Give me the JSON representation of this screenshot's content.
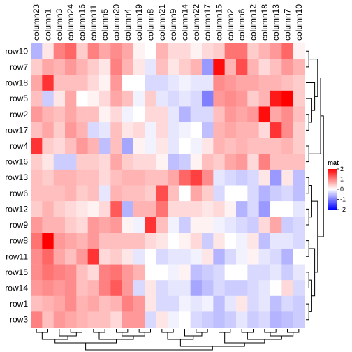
{
  "chart_data": {
    "type": "heatmap",
    "columns": [
      "column23",
      "column1",
      "column3",
      "column24",
      "column16",
      "column11",
      "column5",
      "column20",
      "column4",
      "column19",
      "column8",
      "column21",
      "column9",
      "column14",
      "column22",
      "column17",
      "column15",
      "column2",
      "column6",
      "column12",
      "column18",
      "column13",
      "column7",
      "column10"
    ],
    "rows": [
      "row10",
      "row7",
      "row18",
      "row5",
      "row2",
      "row17",
      "row4",
      "row16",
      "row13",
      "row6",
      "row12",
      "row9",
      "row8",
      "row11",
      "row15",
      "row14",
      "row1",
      "row3"
    ],
    "values": [
      [
        -0.6,
        0.2,
        1.0,
        1.2,
        0.4,
        1.0,
        0.7,
        0.9,
        0.7,
        0.1,
        0.0,
        0.6,
        0.3,
        0.3,
        0.1,
        0.3,
        0.4,
        1.1,
        1.1,
        0.4,
        0.6,
        0.8,
        1.2,
        0.1
      ],
      [
        0.4,
        0.7,
        0.6,
        0.8,
        0.6,
        0.4,
        0.2,
        1.0,
        0.6,
        0.2,
        -0.2,
        0.5,
        0.2,
        0.4,
        0.6,
        -0.8,
        1.9,
        0.6,
        1.4,
        0.6,
        0.3,
        0.5,
        0.8,
        0.6
      ],
      [
        0.7,
        1.6,
        0.5,
        0.5,
        0.5,
        0.3,
        0.1,
        0.8,
        0.0,
        0.0,
        -0.3,
        -0.3,
        -0.2,
        -0.1,
        -0.2,
        -0.2,
        0.9,
        0.8,
        0.7,
        0.7,
        0.6,
        0.6,
        0.5,
        0.4
      ],
      [
        0.5,
        -0.4,
        0.2,
        0.7,
        0.0,
        0.1,
        0.3,
        0.7,
        0.5,
        -0.1,
        0.4,
        -0.2,
        -0.3,
        -0.2,
        -0.3,
        -1.0,
        0.8,
        0.9,
        0.8,
        0.4,
        0.6,
        1.8,
        2.0,
        0.4
      ],
      [
        0.8,
        0.6,
        0.5,
        0.7,
        0.5,
        0.5,
        0.1,
        0.3,
        -0.1,
        0.0,
        0.3,
        0.3,
        -0.2,
        -0.6,
        -0.3,
        -0.3,
        0.5,
        0.8,
        0.7,
        0.8,
        1.9,
        0.7,
        0.9,
        0.5
      ],
      [
        0.5,
        0.7,
        0.4,
        0.8,
        0.6,
        -0.3,
        -0.2,
        0.5,
        0.2,
        0.3,
        -0.1,
        0.3,
        -0.2,
        -0.1,
        0.0,
        -0.5,
        0.6,
        0.7,
        0.6,
        0.6,
        0.3,
        1.6,
        0.9,
        0.4
      ],
      [
        1.6,
        0.4,
        0.3,
        0.5,
        0.8,
        0.6,
        -0.5,
        0.5,
        -0.7,
        0.1,
        -0.1,
        0.2,
        -0.2,
        0.0,
        -0.1,
        0.2,
        0.6,
        0.5,
        0.6,
        0.5,
        0.5,
        0.5,
        0.6,
        0.4
      ],
      [
        0.4,
        0.2,
        -0.4,
        -0.4,
        0.4,
        0.4,
        0.3,
        0.7,
        0.4,
        0.3,
        0.3,
        0.1,
        -0.5,
        -0.4,
        0.1,
        0.5,
        0.4,
        0.7,
        0.8,
        0.3,
        1.0,
        0.5,
        0.5,
        0.5
      ],
      [
        0.5,
        0.4,
        0.6,
        0.6,
        0.5,
        0.5,
        0.3,
        0.5,
        0.6,
        0.6,
        0.5,
        0.5,
        0.7,
        1.2,
        1.5,
        0.9,
        -0.2,
        -0.3,
        -0.4,
        -0.3,
        0.2,
        -0.8,
        0.2,
        -0.5
      ],
      [
        0.5,
        0.5,
        0.5,
        0.6,
        0.4,
        0.5,
        -0.2,
        0.6,
        0.5,
        0.5,
        0.4,
        1.4,
        0.5,
        0.0,
        0.7,
        0.4,
        -0.3,
        0.0,
        0.0,
        -0.3,
        -0.6,
        -0.4,
        -0.3,
        -0.5
      ],
      [
        0.4,
        0.6,
        0.4,
        0.3,
        0.2,
        0.1,
        0.3,
        1.3,
        -0.6,
        0.6,
        0.6,
        1.1,
        0.3,
        0.3,
        0.3,
        0.2,
        0.3,
        0.1,
        -0.6,
        -0.3,
        -0.8,
        0.0,
        0.0,
        -0.2
      ],
      [
        0.8,
        0.6,
        0.6,
        0.4,
        0.3,
        0.8,
        0.7,
        0.8,
        0.1,
        -0.1,
        1.6,
        0.5,
        -0.1,
        -0.4,
        0.1,
        0.1,
        -0.1,
        -0.2,
        -0.3,
        -0.4,
        0.3,
        0.7,
        -0.4,
        -0.3
      ],
      [
        1.1,
        2.0,
        0.8,
        0.7,
        0.6,
        0.8,
        0.5,
        0.5,
        0.5,
        0.5,
        0.3,
        0.2,
        0.0,
        0.1,
        0.3,
        -0.4,
        0.2,
        0.0,
        -0.1,
        0.2,
        -0.5,
        -0.2,
        -0.2,
        -0.3
      ],
      [
        0.9,
        1.2,
        0.7,
        0.5,
        0.8,
        1.6,
        0.3,
        0.4,
        0.2,
        -0.2,
        0.0,
        -0.3,
        -0.2,
        -0.2,
        -0.1,
        0.2,
        -0.6,
        -0.3,
        -0.1,
        0.1,
        -0.2,
        -0.3,
        -0.6,
        0.0
      ],
      [
        0.9,
        1.1,
        1.0,
        0.9,
        0.5,
        0.3,
        1.0,
        1.1,
        0.8,
        0.6,
        0.0,
        0.0,
        -0.1,
        0.1,
        -0.5,
        -0.4,
        -0.3,
        0.0,
        0.0,
        -0.3,
        -0.3,
        -0.2,
        -0.4,
        -0.2
      ],
      [
        0.8,
        0.9,
        0.8,
        0.9,
        0.5,
        0.6,
        1.0,
        1.3,
        0.8,
        -0.3,
        0.2,
        -0.3,
        -0.2,
        -0.2,
        -0.7,
        -0.5,
        -0.3,
        -0.4,
        -0.4,
        -0.3,
        -0.2,
        0.0,
        0.3,
        -0.3
      ],
      [
        0.5,
        0.6,
        0.7,
        0.9,
        0.6,
        0.7,
        0.5,
        0.6,
        1.0,
        0.8,
        0.2,
        -0.3,
        -0.3,
        -0.1,
        -0.2,
        -0.1,
        -0.5,
        -0.2,
        0.2,
        -0.3,
        -0.2,
        -0.5,
        -0.3,
        -0.4
      ],
      [
        1.0,
        0.5,
        0.8,
        0.7,
        0.6,
        0.5,
        0.5,
        0.3,
        0.8,
        0.8,
        -0.3,
        0.2,
        -0.1,
        0.0,
        -0.3,
        -0.4,
        -0.5,
        -0.4,
        -0.2,
        -0.4,
        -0.3,
        -0.6,
        -0.5,
        -0.4
      ]
    ],
    "legend": {
      "title": "mat",
      "ticks": [
        "2",
        "1",
        "0",
        "-1",
        "-2"
      ],
      "tick_values": [
        2,
        1,
        0,
        -1,
        -2
      ],
      "colors": {
        "high": "#ff0000",
        "mid": "#ffffff",
        "low": "#0000ff"
      }
    },
    "range": [
      -2,
      2
    ],
    "row_dendrogram_side": "right",
    "column_dendrogram_side": "bottom"
  }
}
